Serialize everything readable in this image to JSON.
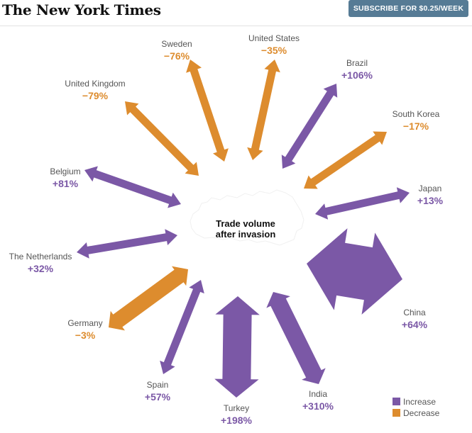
{
  "header": {
    "logo": "The New York Times",
    "subscribe_label": "SUBSCRIBE FOR $0.25/WEEK"
  },
  "colors": {
    "increase": "#7b58a6",
    "decrease": "#dd8c2e",
    "map": "#ffffff"
  },
  "chart_data": {
    "type": "radial-arrow",
    "center_label": [
      "Trade volume",
      "after invasion"
    ],
    "legend": [
      {
        "key": "increase",
        "label": "Increase"
      },
      {
        "key": "decrease",
        "label": "Decrease"
      }
    ],
    "series": [
      {
        "country": "United States",
        "change": "−35%",
        "value": -35,
        "dir": "decrease"
      },
      {
        "country": "Brazil",
        "change": "+106%",
        "value": 106,
        "dir": "increase"
      },
      {
        "country": "South Korea",
        "change": "−17%",
        "value": -17,
        "dir": "decrease"
      },
      {
        "country": "Japan",
        "change": "+13%",
        "value": 13,
        "dir": "increase"
      },
      {
        "country": "China",
        "change": "+64%",
        "value": 64,
        "dir": "increase"
      },
      {
        "country": "India",
        "change": "+310%",
        "value": 310,
        "dir": "increase"
      },
      {
        "country": "Turkey",
        "change": "+198%",
        "value": 198,
        "dir": "increase"
      },
      {
        "country": "Spain",
        "change": "+57%",
        "value": 57,
        "dir": "increase"
      },
      {
        "country": "Germany",
        "change": "−3%",
        "value": -3,
        "dir": "decrease"
      },
      {
        "country": "The Netherlands",
        "change": "+32%",
        "value": 32,
        "dir": "increase"
      },
      {
        "country": "Belgium",
        "change": "+81%",
        "value": 81,
        "dir": "increase"
      },
      {
        "country": "United Kingdom",
        "change": "−79%",
        "value": -79,
        "dir": "decrease"
      },
      {
        "country": "Sweden",
        "change": "−76%",
        "value": -76,
        "dir": "decrease"
      }
    ]
  }
}
